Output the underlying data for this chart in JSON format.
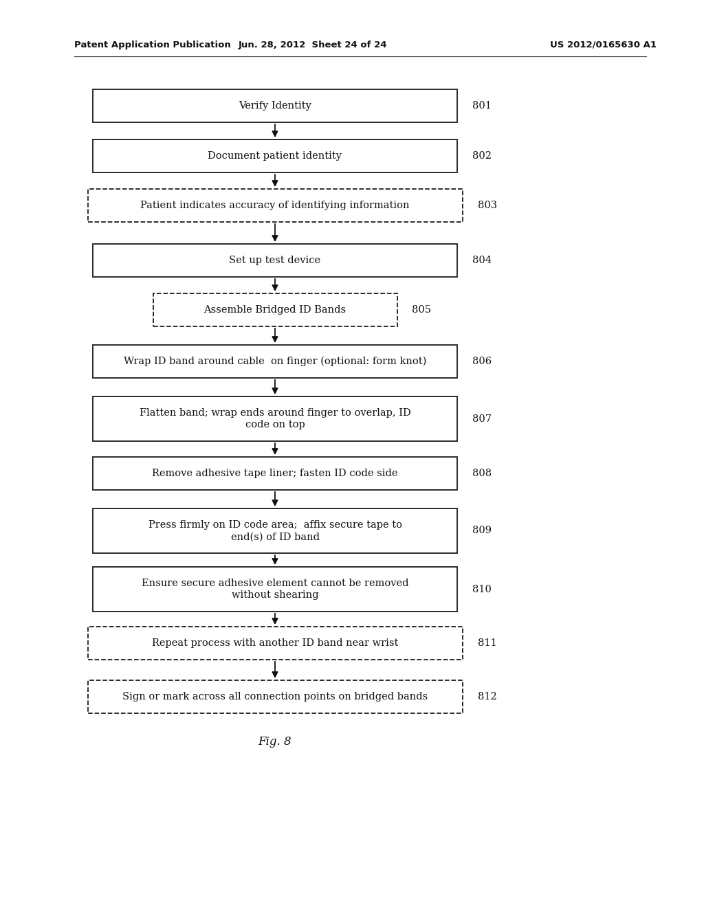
{
  "header_left": "Patent Application Publication",
  "header_center": "Jun. 28, 2012  Sheet 24 of 24",
  "header_right": "US 2012/0165630 A1",
  "figure_label": "Fig. 8",
  "background_color": "#ffffff",
  "boxes": [
    {
      "id": "801",
      "text": "Verify Identity",
      "style": "solid",
      "lines": 1
    },
    {
      "id": "802",
      "text": "Document patient identity",
      "style": "solid",
      "lines": 1
    },
    {
      "id": "803",
      "text": "Patient indicates accuracy of identifying information",
      "style": "dashed",
      "lines": 1
    },
    {
      "id": "804",
      "text": "Set up test device",
      "style": "solid",
      "lines": 1
    },
    {
      "id": "805",
      "text": "Assemble Bridged ID Bands",
      "style": "dashed",
      "lines": 1
    },
    {
      "id": "806",
      "text": "Wrap ID band around cable  on finger (optional: form knot)",
      "style": "solid",
      "lines": 1
    },
    {
      "id": "807",
      "text": "Flatten band; wrap ends around finger to overlap, ID\ncode on top",
      "style": "solid",
      "lines": 2
    },
    {
      "id": "808",
      "text": "Remove adhesive tape liner; fasten ID code side",
      "style": "solid",
      "lines": 1
    },
    {
      "id": "809",
      "text": "Press firmly on ID code area;  affix secure tape to\nend(s) of ID band",
      "style": "solid",
      "lines": 2
    },
    {
      "id": "810",
      "text": "Ensure secure adhesive element cannot be removed\nwithout shearing",
      "style": "solid",
      "lines": 2
    },
    {
      "id": "811",
      "text": "Repeat process with another ID band near wrist",
      "style": "dashed",
      "lines": 1
    },
    {
      "id": "812",
      "text": "Sign or mark across all connection points on bridged bands",
      "style": "dashed",
      "lines": 1
    }
  ]
}
